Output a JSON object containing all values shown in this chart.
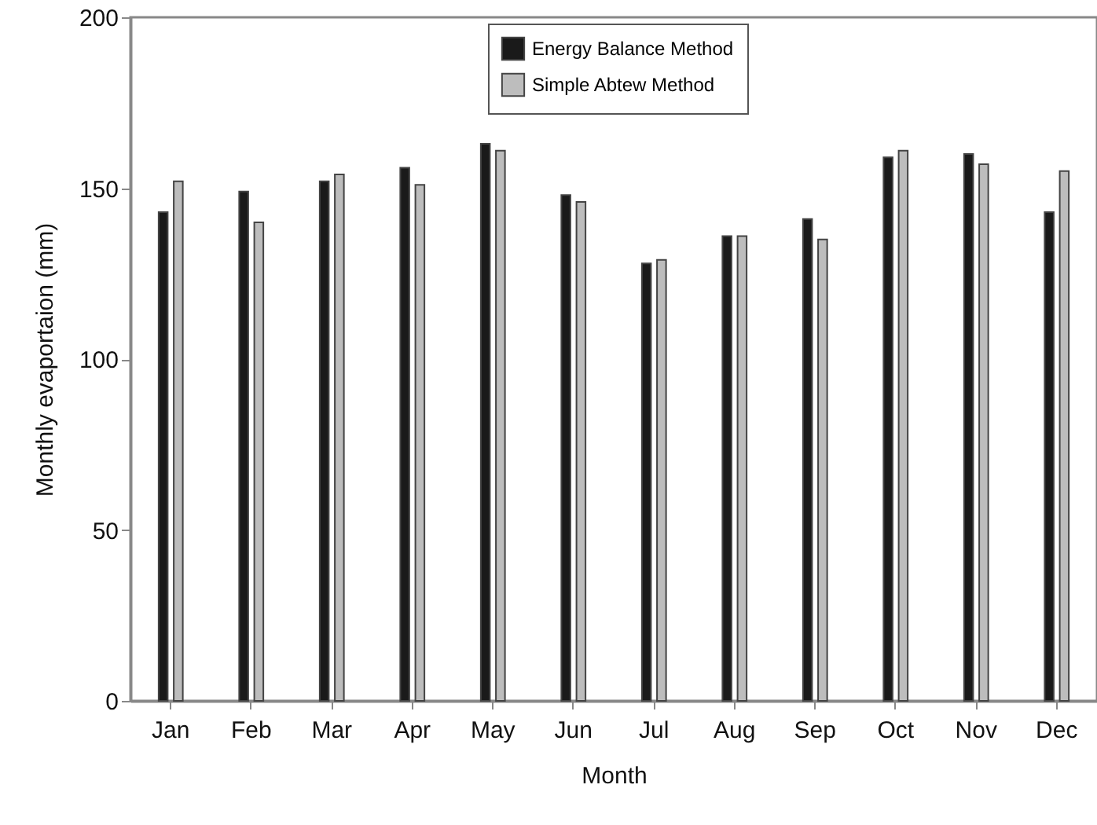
{
  "chart_data": {
    "type": "bar",
    "xlabel": "Month",
    "ylabel": "Monthly evaportaion (mm)",
    "categories": [
      "Jan",
      "Feb",
      "Mar",
      "Apr",
      "May",
      "Jun",
      "Jul",
      "Aug",
      "Sep",
      "Oct",
      "Nov",
      "Dec"
    ],
    "series": [
      {
        "name": "Energy Balance Method",
        "color": "#1a1a1a",
        "values": [
          143,
          149,
          152,
          156,
          163,
          148,
          128,
          136,
          141,
          159,
          160,
          143
        ]
      },
      {
        "name": "Simple Abtew Method",
        "color": "#bdbdbd",
        "values": [
          152,
          140,
          154,
          151,
          161,
          146,
          129,
          136,
          135,
          161,
          157,
          155
        ]
      }
    ],
    "ylim": [
      0,
      200
    ],
    "yticks": [
      0,
      50,
      100,
      150,
      200
    ],
    "grid": false,
    "legend": "top"
  }
}
